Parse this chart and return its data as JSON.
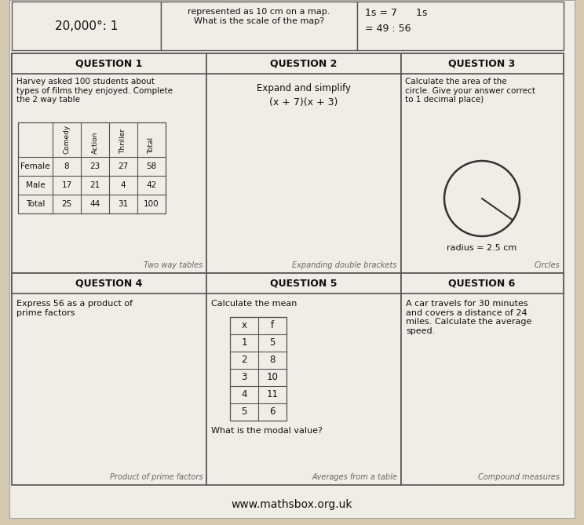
{
  "bg_color": "#d4c9b0",
  "paper_color": "#f0ede6",
  "cell_bg": "#eeebe3",
  "border_color": "#555555",
  "text_color": "#111111",
  "title": "www.mathsbox.org.uk",
  "top_section": {
    "left_text": "20,000°: 1",
    "mid_text": "represented as 10 cm on a map.\nWhat is the scale of the map?",
    "right_text": "1s = 7      1s",
    "right_text2": "= 49 : 56"
  },
  "q1_header": "QUESTION 1",
  "q1_desc": "Harvey asked 100 students about\ntypes of films they enjoyed. Complete\nthe 2 way table",
  "q1_col_headers": [
    "Comedy",
    "Action",
    "Thriller",
    "Total"
  ],
  "q1_rows": [
    [
      "Female",
      "8",
      "23",
      "27",
      "58"
    ],
    [
      "Male",
      "17",
      "21",
      "4",
      "42"
    ],
    [
      "Total",
      "25",
      "44",
      "31",
      "100"
    ]
  ],
  "q1_footer": "Two way tables",
  "q2_header": "QUESTION 2",
  "q2_line1": "Expand and simplify",
  "q2_line2": "(x + 7)(x + 3)",
  "q2_footer": "Expanding double brackets",
  "q3_header": "QUESTION 3",
  "q3_desc": "Calculate the area of the\ncircle. Give your answer correct\nto 1 decimal place)",
  "q3_radius_text": "radius = 2.5 cm",
  "q3_footer": "Circles",
  "q4_header": "QUESTION 4",
  "q4_desc": "Express 56 as a product of\nprime factors",
  "q4_footer": "Product of prime factors",
  "q5_header": "QUESTION 5",
  "q5_desc": "Calculate the mean",
  "q5_table_headers": [
    "x",
    "f"
  ],
  "q5_table_rows": [
    [
      "1",
      "5"
    ],
    [
      "2",
      "8"
    ],
    [
      "3",
      "10"
    ],
    [
      "4",
      "11"
    ],
    [
      "5",
      "6"
    ]
  ],
  "q5_extra": "What is the modal value?",
  "q5_footer": "Averages from a table",
  "q6_header": "QUESTION 6",
  "q6_desc": "A car travels for 30 minutes\nand covers a distance of 24\nmiles. Calculate the average\nspeed.",
  "q6_footer": "Compound measures"
}
